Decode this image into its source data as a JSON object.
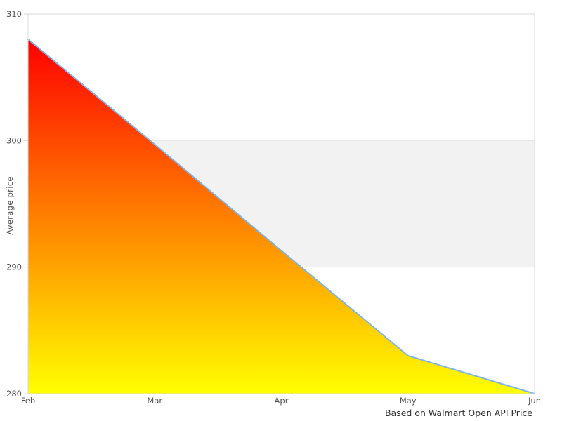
{
  "chart_data": {
    "type": "area",
    "categories": [
      "Feb",
      "Mar",
      "Apr",
      "May",
      "Jun"
    ],
    "values": [
      308,
      299.7,
      291.3,
      283,
      280
    ],
    "title": "",
    "xlabel": "",
    "ylabel": "Average price",
    "caption": "Based on Walmart Open API Price",
    "ylim": [
      280,
      310
    ],
    "yticks": [
      280,
      290,
      300,
      310
    ],
    "plot_band": {
      "from": 290,
      "to": 300,
      "fill": "#f2f2f2",
      "edge": "#e6e6e6"
    },
    "line_color": "#7cb5ec",
    "area_gradient": {
      "top": "#ff0000",
      "bottom": "#ffff00"
    },
    "plot_border_color": "#d8d8d8",
    "background": "#ffffff",
    "grid": "off",
    "legend": "none"
  }
}
